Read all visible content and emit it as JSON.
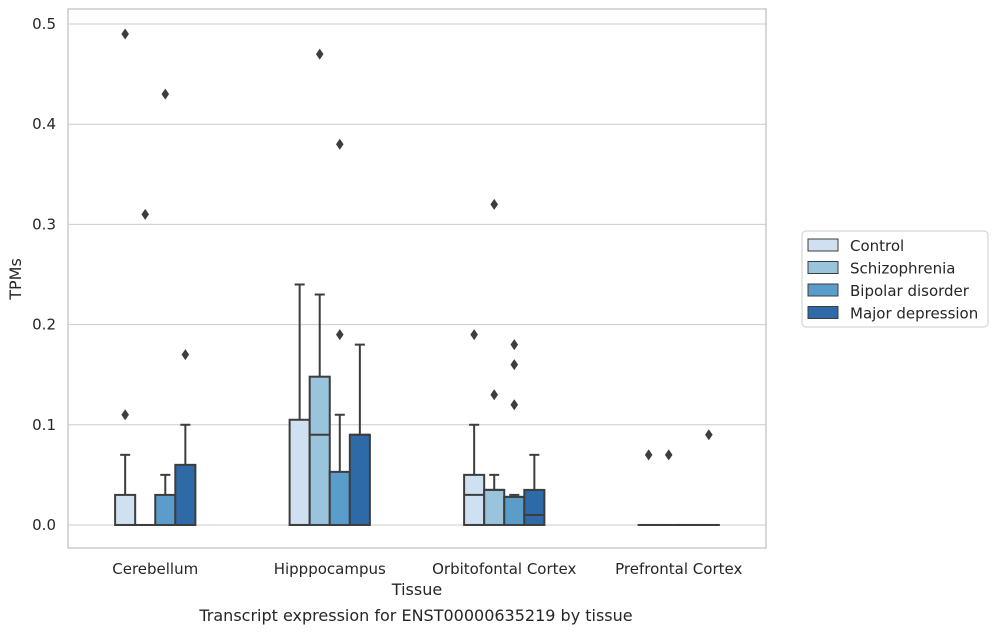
{
  "caption": "Transcript expression for ENST00000635219 by tissue",
  "chart_data": {
    "type": "boxplot",
    "xlabel": "Tissue",
    "ylabel": "TPMs",
    "ylim": [
      -0.023,
      0.515
    ],
    "yticks": [
      0.0,
      0.1,
      0.2,
      0.3,
      0.4,
      0.5
    ],
    "ytick_labels": [
      "0.0",
      "0.1",
      "0.2",
      "0.3",
      "0.4",
      "0.5"
    ],
    "grid": "horizontal",
    "legend_position": "right, outside plot",
    "categories": [
      "Cerebellum",
      "Hipppocampus",
      "Orbitofontal Cortex",
      "Prefrontal Cortex"
    ],
    "series": [
      {
        "name": "Control",
        "color": "#cfe0f1",
        "boxes": [
          {
            "q1": 0.0,
            "median": 0.0,
            "q3": 0.03,
            "whisker_low": 0.0,
            "whisker_high": 0.07,
            "outliers": [
              0.11,
              0.49
            ]
          },
          {
            "q1": 0.0,
            "median": 0.0,
            "q3": 0.105,
            "whisker_low": 0.0,
            "whisker_high": 0.24,
            "outliers": []
          },
          {
            "q1": 0.0,
            "median": 0.03,
            "q3": 0.05,
            "whisker_low": 0.0,
            "whisker_high": 0.1,
            "outliers": [
              0.19
            ]
          },
          {
            "q1": 0.0,
            "median": 0.0,
            "q3": 0.0,
            "whisker_low": 0.0,
            "whisker_high": 0.0,
            "outliers": [
              0.07
            ]
          }
        ]
      },
      {
        "name": "Schizophrenia",
        "color": "#9ac3dc",
        "boxes": [
          {
            "q1": 0.0,
            "median": 0.0,
            "q3": 0.0,
            "whisker_low": 0.0,
            "whisker_high": 0.0,
            "outliers": [
              0.31
            ]
          },
          {
            "q1": 0.0,
            "median": 0.09,
            "q3": 0.148,
            "whisker_low": 0.0,
            "whisker_high": 0.23,
            "outliers": [
              0.47
            ]
          },
          {
            "q1": 0.0,
            "median": 0.035,
            "q3": 0.035,
            "whisker_low": 0.0,
            "whisker_high": 0.05,
            "outliers": [
              0.13,
              0.32
            ]
          },
          {
            "q1": 0.0,
            "median": 0.0,
            "q3": 0.0,
            "whisker_low": 0.0,
            "whisker_high": 0.0,
            "outliers": [
              0.07
            ]
          }
        ]
      },
      {
        "name": "Bipolar disorder",
        "color": "#5a9dcb",
        "boxes": [
          {
            "q1": 0.0,
            "median": 0.0,
            "q3": 0.03,
            "whisker_low": 0.0,
            "whisker_high": 0.05,
            "outliers": [
              0.43
            ]
          },
          {
            "q1": 0.0,
            "median": 0.0,
            "q3": 0.053,
            "whisker_low": 0.0,
            "whisker_high": 0.11,
            "outliers": [
              0.19,
              0.38
            ]
          },
          {
            "q1": 0.0,
            "median": 0.028,
            "q3": 0.028,
            "whisker_low": 0.0,
            "whisker_high": 0.03,
            "outliers": [
              0.12,
              0.16,
              0.18
            ]
          },
          {
            "q1": 0.0,
            "median": 0.0,
            "q3": 0.0,
            "whisker_low": 0.0,
            "whisker_high": 0.0,
            "outliers": []
          }
        ]
      },
      {
        "name": "Major depression",
        "color": "#2d6aa7",
        "boxes": [
          {
            "q1": 0.0,
            "median": 0.0,
            "q3": 0.06,
            "whisker_low": 0.0,
            "whisker_high": 0.1,
            "outliers": [
              0.17
            ]
          },
          {
            "q1": 0.0,
            "median": 0.09,
            "q3": 0.09,
            "whisker_low": 0.0,
            "whisker_high": 0.18,
            "outliers": []
          },
          {
            "q1": 0.0,
            "median": 0.01,
            "q3": 0.035,
            "whisker_low": 0.0,
            "whisker_high": 0.07,
            "outliers": []
          },
          {
            "q1": 0.0,
            "median": 0.0,
            "q3": 0.0,
            "whisker_low": 0.0,
            "whisker_high": 0.0,
            "outliers": [
              0.09
            ]
          }
        ]
      }
    ]
  }
}
